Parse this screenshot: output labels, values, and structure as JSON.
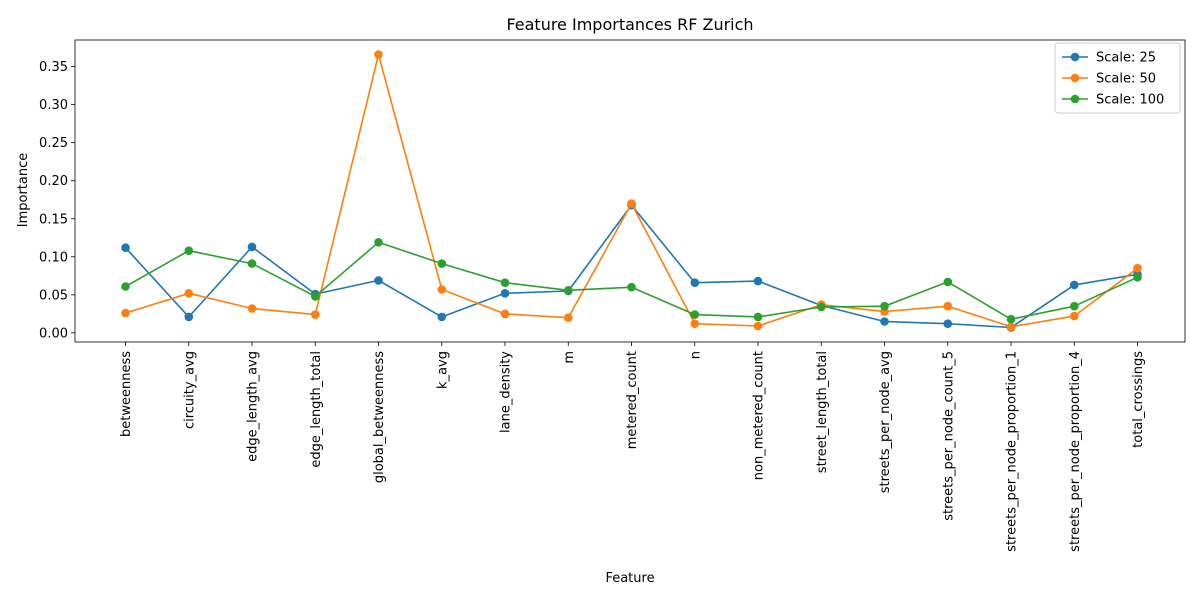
{
  "chart_data": {
    "type": "line",
    "title": "Feature Importances RF Zurich",
    "xlabel": "Feature",
    "ylabel": "Importance",
    "ylim": [
      -0.012,
      0.385
    ],
    "yticks": [
      0.0,
      0.05,
      0.1,
      0.15,
      0.2,
      0.25,
      0.3,
      0.35
    ],
    "ytick_labels": [
      "0.00",
      "0.05",
      "0.10",
      "0.15",
      "0.20",
      "0.25",
      "0.30",
      "0.35"
    ],
    "grid": false,
    "legend_position": "top-right",
    "categories": [
      "betweenness",
      "circuity_avg",
      "edge_length_avg",
      "edge_length_total",
      "global_betweenness",
      "k_avg",
      "lane_density",
      "m",
      "metered_count",
      "n",
      "non_metered_count",
      "street_length_total",
      "streets_per_node_avg",
      "streets_per_node_count_5",
      "streets_per_node_proportion_1",
      "streets_per_node_proportion_4",
      "total_crossings"
    ],
    "series": [
      {
        "name": "Scale: 25",
        "color": "#1f77b4",
        "values": [
          0.112,
          0.021,
          0.113,
          0.051,
          0.069,
          0.021,
          0.052,
          0.055,
          0.168,
          0.066,
          0.068,
          0.036,
          0.015,
          0.012,
          0.007,
          0.063,
          0.077
        ]
      },
      {
        "name": "Scale: 50",
        "color": "#ff7f0e",
        "values": [
          0.026,
          0.052,
          0.032,
          0.024,
          0.366,
          0.057,
          0.025,
          0.02,
          0.17,
          0.012,
          0.009,
          0.037,
          0.028,
          0.035,
          0.008,
          0.022,
          0.085
        ]
      },
      {
        "name": "Scale: 100",
        "color": "#2ca02c",
        "values": [
          0.061,
          0.108,
          0.091,
          0.048,
          0.119,
          0.091,
          0.066,
          0.056,
          0.06,
          0.024,
          0.021,
          0.034,
          0.035,
          0.067,
          0.018,
          0.035,
          0.073
        ]
      }
    ]
  }
}
